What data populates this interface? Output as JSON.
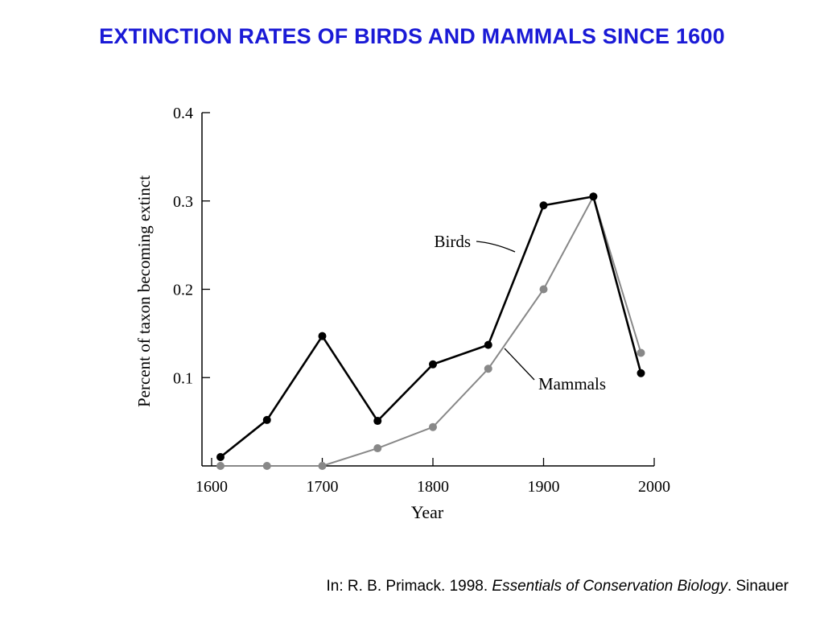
{
  "slide": {
    "title": "EXTINCTION RATES OF BIRDS AND MAMMALS SINCE 1600"
  },
  "citation": {
    "prefix": "In: R. B. Primack. 1998. ",
    "book": "Essentials of Conservation Biology",
    "suffix": ". Sinauer"
  },
  "colors": {
    "title": "#1a1ad6",
    "birds": "#000000",
    "mammals": "#888888"
  },
  "chart_data": {
    "type": "line",
    "title": "",
    "xlabel": "Year",
    "ylabel": "Percent of taxon becoming extinct",
    "xlim": [
      1600,
      2000
    ],
    "ylim": [
      0,
      0.4
    ],
    "x_ticks": [
      1600,
      1700,
      1800,
      1900,
      2000
    ],
    "y_ticks": [
      0.1,
      0.2,
      0.3,
      0.4
    ],
    "x_tick_labels": [
      "1600",
      "1700",
      "1800",
      "1900",
      "2000"
    ],
    "y_tick_labels": [
      "0.1",
      "0.2",
      "0.3",
      "0.4"
    ],
    "grid": false,
    "legend": "inline labels",
    "series": [
      {
        "name": "Birds",
        "color": "#000000",
        "x": [
          1608,
          1650,
          1700,
          1750,
          1800,
          1850,
          1900,
          1945,
          1988
        ],
        "y": [
          0.01,
          0.052,
          0.147,
          0.051,
          0.115,
          0.137,
          0.295,
          0.305,
          0.105
        ]
      },
      {
        "name": "Mammals",
        "color": "#888888",
        "x": [
          1608,
          1650,
          1700,
          1750,
          1800,
          1850,
          1900,
          1945,
          1988
        ],
        "y": [
          0.0,
          0.0,
          0.0,
          0.02,
          0.044,
          0.11,
          0.2,
          0.305,
          0.128
        ]
      }
    ]
  }
}
